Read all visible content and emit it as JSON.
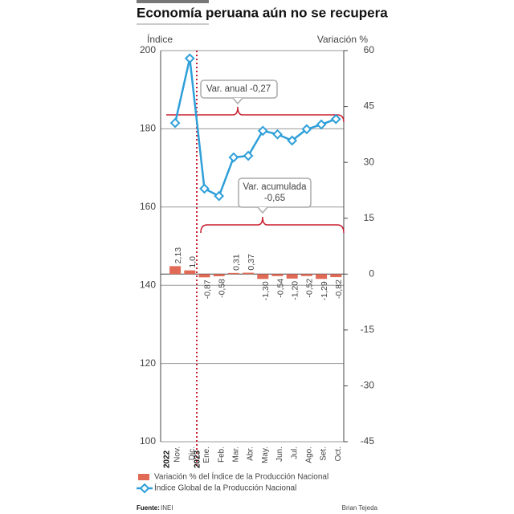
{
  "chart_data": {
    "type": "combo",
    "title": "Economía peruana aún no se recupera",
    "y_label": "Índice",
    "y2_label": "Variación %",
    "categories": [
      "Nov.",
      "Dic.",
      "Ene.",
      "Feb.",
      "Mar.",
      "Abr.",
      "May.",
      "Jun.",
      "Jul.",
      "Ago.",
      "Set.",
      "Oct."
    ],
    "year_labels": [
      "2022",
      "2023"
    ],
    "ylim": [
      100,
      200
    ],
    "yticks": [
      100,
      120,
      140,
      160,
      180,
      200
    ],
    "y2lim": [
      -45,
      60
    ],
    "y2ticks": [
      -45,
      -30,
      -15,
      0,
      15,
      30,
      45,
      60
    ],
    "grid": true,
    "series": [
      {
        "name": "Variación % del Índice de la Producción Nacional",
        "type": "bar",
        "axis": "y2",
        "color": "#e06a55",
        "values": [
          2.13,
          1.0,
          -0.87,
          -0.58,
          0.31,
          0.37,
          -1.3,
          -0.54,
          -1.2,
          -0.52,
          -1.29,
          -0.82
        ],
        "value_labels": [
          "2,13",
          "1,0",
          "-0,87",
          "-0,58",
          "0,31",
          "0,37",
          "-1,30",
          "-0,54",
          "-1,20",
          "-0,52",
          "-1,29",
          "-0,82"
        ]
      },
      {
        "name": "Índice Global de la Producción Nacional",
        "type": "line",
        "color": "#2e9fd9",
        "values": [
          181.5,
          198,
          164.7,
          162.8,
          172.7,
          173.1,
          179.5,
          178.6,
          177,
          179.9,
          181.1,
          182.5
        ]
      }
    ],
    "annotations": [
      "Var. anual -0,27",
      "Var. acumulada",
      "-0,65"
    ],
    "source_label": "Fuente:",
    "source": "INEI",
    "author": "Brian Tejeda"
  }
}
